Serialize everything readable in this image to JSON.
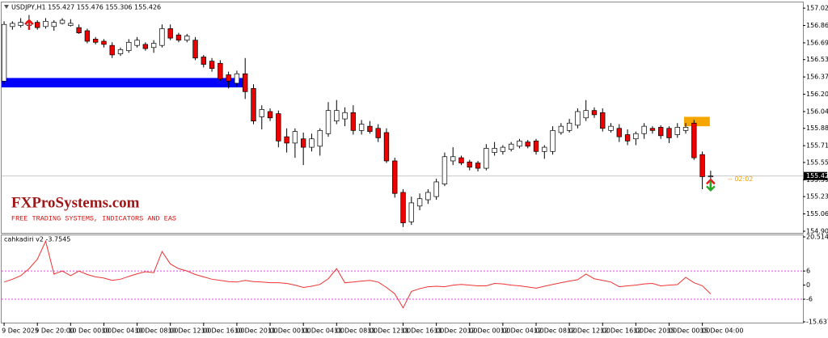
{
  "chart_data": [
    {
      "type": "candlestick",
      "title": "USDJPY,H1  155.427 155.476 155.306 155.426",
      "up_color": "#ffffff",
      "down_color": "#ee0000",
      "xlim": [
        -0.3,
        96.1
      ],
      "ylim": [
        154.892,
        157.072
      ],
      "yticks": [
        157.025,
        {
          "value": 156.86,
          "label": "156.860"
        },
        156.695,
        156.535,
        {
          "value": 156.37,
          "label": "156.370"
        },
        156.205,
        156.04,
        {
          "value": 155.88,
          "label": "155.880"
        },
        155.715,
        155.555,
        {
          "value": 155.39,
          "label": "155.390"
        },
        {
          "value": 155.23,
          "label": "155.230"
        },
        155.065,
        {
          "value": 154.9,
          "label": "154.900"
        }
      ],
      "open": [
        156.33,
        156.85,
        156.86,
        156.86,
        156.89,
        156.85,
        156.85,
        156.88,
        156.86,
        156.84,
        156.81,
        156.73,
        156.71,
        156.67,
        156.59,
        156.62,
        156.67,
        156.68,
        156.65,
        156.67,
        156.83,
        156.77,
        156.72,
        156.72,
        156.56,
        156.52,
        156.5,
        156.39,
        156.31,
        156.4,
        156.26,
        155.99,
        156.04,
        156.02,
        155.8,
        155.74,
        155.78,
        155.7,
        155.71,
        155.83,
        155.95,
        155.97,
        156.03,
        155.86,
        155.9,
        155.88,
        155.84,
        155.57,
        155.27,
        154.99,
        155.14,
        155.2,
        155.23,
        155.35,
        155.57,
        155.6,
        155.56,
        155.55,
        155.5,
        155.65,
        155.66,
        155.68,
        155.71,
        155.75,
        155.76,
        155.66,
        155.66,
        155.84,
        155.86,
        155.91,
        155.98,
        156.05,
        156.03,
        155.86,
        155.88,
        155.82,
        155.78,
        155.83,
        155.88,
        155.89,
        155.88,
        155.82,
        155.86,
        155.93,
        155.63,
        155.42
      ],
      "high": [
        156.9,
        156.9,
        156.93,
        156.96,
        156.91,
        156.93,
        156.91,
        156.93,
        156.92,
        156.87,
        156.83,
        156.75,
        156.73,
        156.7,
        156.65,
        156.73,
        156.75,
        156.7,
        156.72,
        156.87,
        156.87,
        156.79,
        156.78,
        156.75,
        156.58,
        156.55,
        156.53,
        156.42,
        156.43,
        156.55,
        156.3,
        156.1,
        156.07,
        156.05,
        155.88,
        155.88,
        155.84,
        155.83,
        155.88,
        156.13,
        156.15,
        156.08,
        156.1,
        155.96,
        155.95,
        155.92,
        155.88,
        155.6,
        155.3,
        155.23,
        155.26,
        155.3,
        155.4,
        155.65,
        155.7,
        155.62,
        155.58,
        155.57,
        155.73,
        155.75,
        155.72,
        155.75,
        155.78,
        155.77,
        155.78,
        155.72,
        155.9,
        155.93,
        155.97,
        156.07,
        156.15,
        156.08,
        156.07,
        155.93,
        155.92,
        155.87,
        155.85,
        155.93,
        155.9,
        155.91,
        155.9,
        155.93,
        155.93,
        155.96,
        155.66,
        155.476
      ],
      "low": [
        156.3,
        156.82,
        156.84,
        156.85,
        156.82,
        156.83,
        156.81,
        156.87,
        156.85,
        156.78,
        156.69,
        156.68,
        156.65,
        156.55,
        156.57,
        156.6,
        156.65,
        156.62,
        156.6,
        156.65,
        156.72,
        156.7,
        156.7,
        156.53,
        156.46,
        156.42,
        156.33,
        156.26,
        156.28,
        156.16,
        155.92,
        155.87,
        155.95,
        155.7,
        155.65,
        155.6,
        155.53,
        155.66,
        155.62,
        155.8,
        155.92,
        155.9,
        155.82,
        155.82,
        155.83,
        155.75,
        155.55,
        155.22,
        154.94,
        154.96,
        155.1,
        155.16,
        155.2,
        155.33,
        155.53,
        155.53,
        155.48,
        155.47,
        155.48,
        155.62,
        155.63,
        155.66,
        155.69,
        155.69,
        155.63,
        155.59,
        155.63,
        155.82,
        155.84,
        155.88,
        155.95,
        155.98,
        155.85,
        155.84,
        155.75,
        155.72,
        155.72,
        155.78,
        155.83,
        155.78,
        155.74,
        155.79,
        155.83,
        155.58,
        155.3,
        155.306
      ],
      "close": [
        156.87,
        156.88,
        156.89,
        156.9,
        156.84,
        156.9,
        156.89,
        156.91,
        156.88,
        156.79,
        156.71,
        156.7,
        156.68,
        156.58,
        156.63,
        156.7,
        156.72,
        156.64,
        156.69,
        156.83,
        156.74,
        156.72,
        156.76,
        156.55,
        156.49,
        156.45,
        156.35,
        156.33,
        156.4,
        156.23,
        155.95,
        156.06,
        155.98,
        155.76,
        155.74,
        155.85,
        155.7,
        155.78,
        155.86,
        156.05,
        156.05,
        156.03,
        155.86,
        155.92,
        155.85,
        155.79,
        155.57,
        155.26,
        154.98,
        155.17,
        155.21,
        155.27,
        155.37,
        155.61,
        155.61,
        155.55,
        155.51,
        155.5,
        155.69,
        155.69,
        155.7,
        155.73,
        155.76,
        155.71,
        155.66,
        155.7,
        155.86,
        155.9,
        155.93,
        156.04,
        156.05,
        156.01,
        155.88,
        155.9,
        155.8,
        155.76,
        155.83,
        155.9,
        155.86,
        155.81,
        155.79,
        155.89,
        155.89,
        155.6,
        155.42,
        155.426
      ],
      "zones": [
        {
          "start": -0.3,
          "end": 28.7,
          "high": 156.36,
          "low": 156.27,
          "color": "#0000ff"
        },
        {
          "start": 81.8,
          "end": 84.9,
          "high": 155.99,
          "low": 155.9,
          "color": "#f7a600"
        }
      ],
      "signals": [
        {
          "index": 3,
          "price": 156.91,
          "direction": "down",
          "color": "#ee1111"
        },
        {
          "index": 85,
          "price": 155.39,
          "direction": "down",
          "color": "#ee1111"
        },
        {
          "index": 85,
          "price": 155.29,
          "direction": "up",
          "color": "#22aa22"
        }
      ],
      "current_price": 155.426,
      "timer": "-- 02:02",
      "brand": "FXProSystems.com",
      "tagline": "FREE TRADING SYSTEMS, INDICATORS AND EAS"
    },
    {
      "type": "line",
      "title": "cahkadiri v2 -3.7545",
      "color": "#ee3333",
      "xlim": [
        -0.3,
        96.1
      ],
      "ylim": [
        -15.6375,
        20.5145
      ],
      "yticks": [
        20.5145,
        6,
        0,
        -6,
        -15.6375
      ],
      "levels": [
        6,
        -6
      ],
      "level_color": "#e040e0",
      "values": [
        1.3,
        2.5,
        4,
        7,
        11,
        18.7,
        4.7,
        6,
        4,
        6,
        4.5,
        3.5,
        3,
        2,
        2.5,
        3.7,
        4.8,
        5.7,
        5.3,
        14.3,
        9,
        7,
        6,
        4.5,
        3.5,
        2.5,
        2,
        1.5,
        1.3,
        2,
        1.5,
        1.3,
        1,
        1,
        0.7,
        0,
        -1,
        -0.5,
        0.3,
        2.7,
        7,
        1,
        1.3,
        1.7,
        2,
        1.3,
        -1,
        -3.7,
        -9.7,
        -2.7,
        -1.5,
        -0.7,
        -0.5,
        -0.7,
        0,
        0.3,
        0,
        -0.3,
        -0.3,
        0.7,
        0.5,
        0,
        -0.3,
        -0.8,
        -1.3,
        -0.5,
        0.3,
        1,
        1.7,
        2.3,
        4.7,
        2.7,
        2,
        1.3,
        -0.7,
        -0.3,
        0,
        0.5,
        0.7,
        -0.3,
        0,
        0.2,
        3.3,
        1,
        -0.3,
        -3.7545
      ],
      "xticks": [
        {
          "value": 0,
          "label": "9 Dec 2025"
        },
        {
          "value": 4,
          "label": "9 Dec 20:00"
        },
        {
          "value": 8,
          "label": "10 Dec 00:00"
        },
        {
          "value": 12,
          "label": "10 Dec 04:00"
        },
        {
          "value": 16,
          "label": "10 Dec 08:00"
        },
        {
          "value": 20,
          "label": "10 Dec 12:00"
        },
        {
          "value": 24,
          "label": "10 Dec 16:00"
        },
        {
          "value": 28,
          "label": "10 Dec 20:00"
        },
        {
          "value": 32,
          "label": "11 Dec 00:00"
        },
        {
          "value": 36,
          "label": "11 Dec 04:00"
        },
        {
          "value": 40,
          "label": "11 Dec 08:00"
        },
        {
          "value": 44,
          "label": "11 Dec 12:00"
        },
        {
          "value": 48,
          "label": "11 Dec 16:00"
        },
        {
          "value": 52,
          "label": "11 Dec 20:00"
        },
        {
          "value": 56,
          "label": "12 Dec 00:00"
        },
        {
          "value": 60,
          "label": "12 Dec 04:00"
        },
        {
          "value": 64,
          "label": "12 Dec 08:00"
        },
        {
          "value": 68,
          "label": "12 Dec 12:00"
        },
        {
          "value": 72,
          "label": "12 Dec 16:00"
        },
        {
          "value": 76,
          "label": "12 Dec 20:00"
        },
        {
          "value": 80,
          "label": "15 Dec 00:00"
        },
        {
          "value": 84,
          "label": "15 Dec 04:00"
        }
      ]
    }
  ]
}
